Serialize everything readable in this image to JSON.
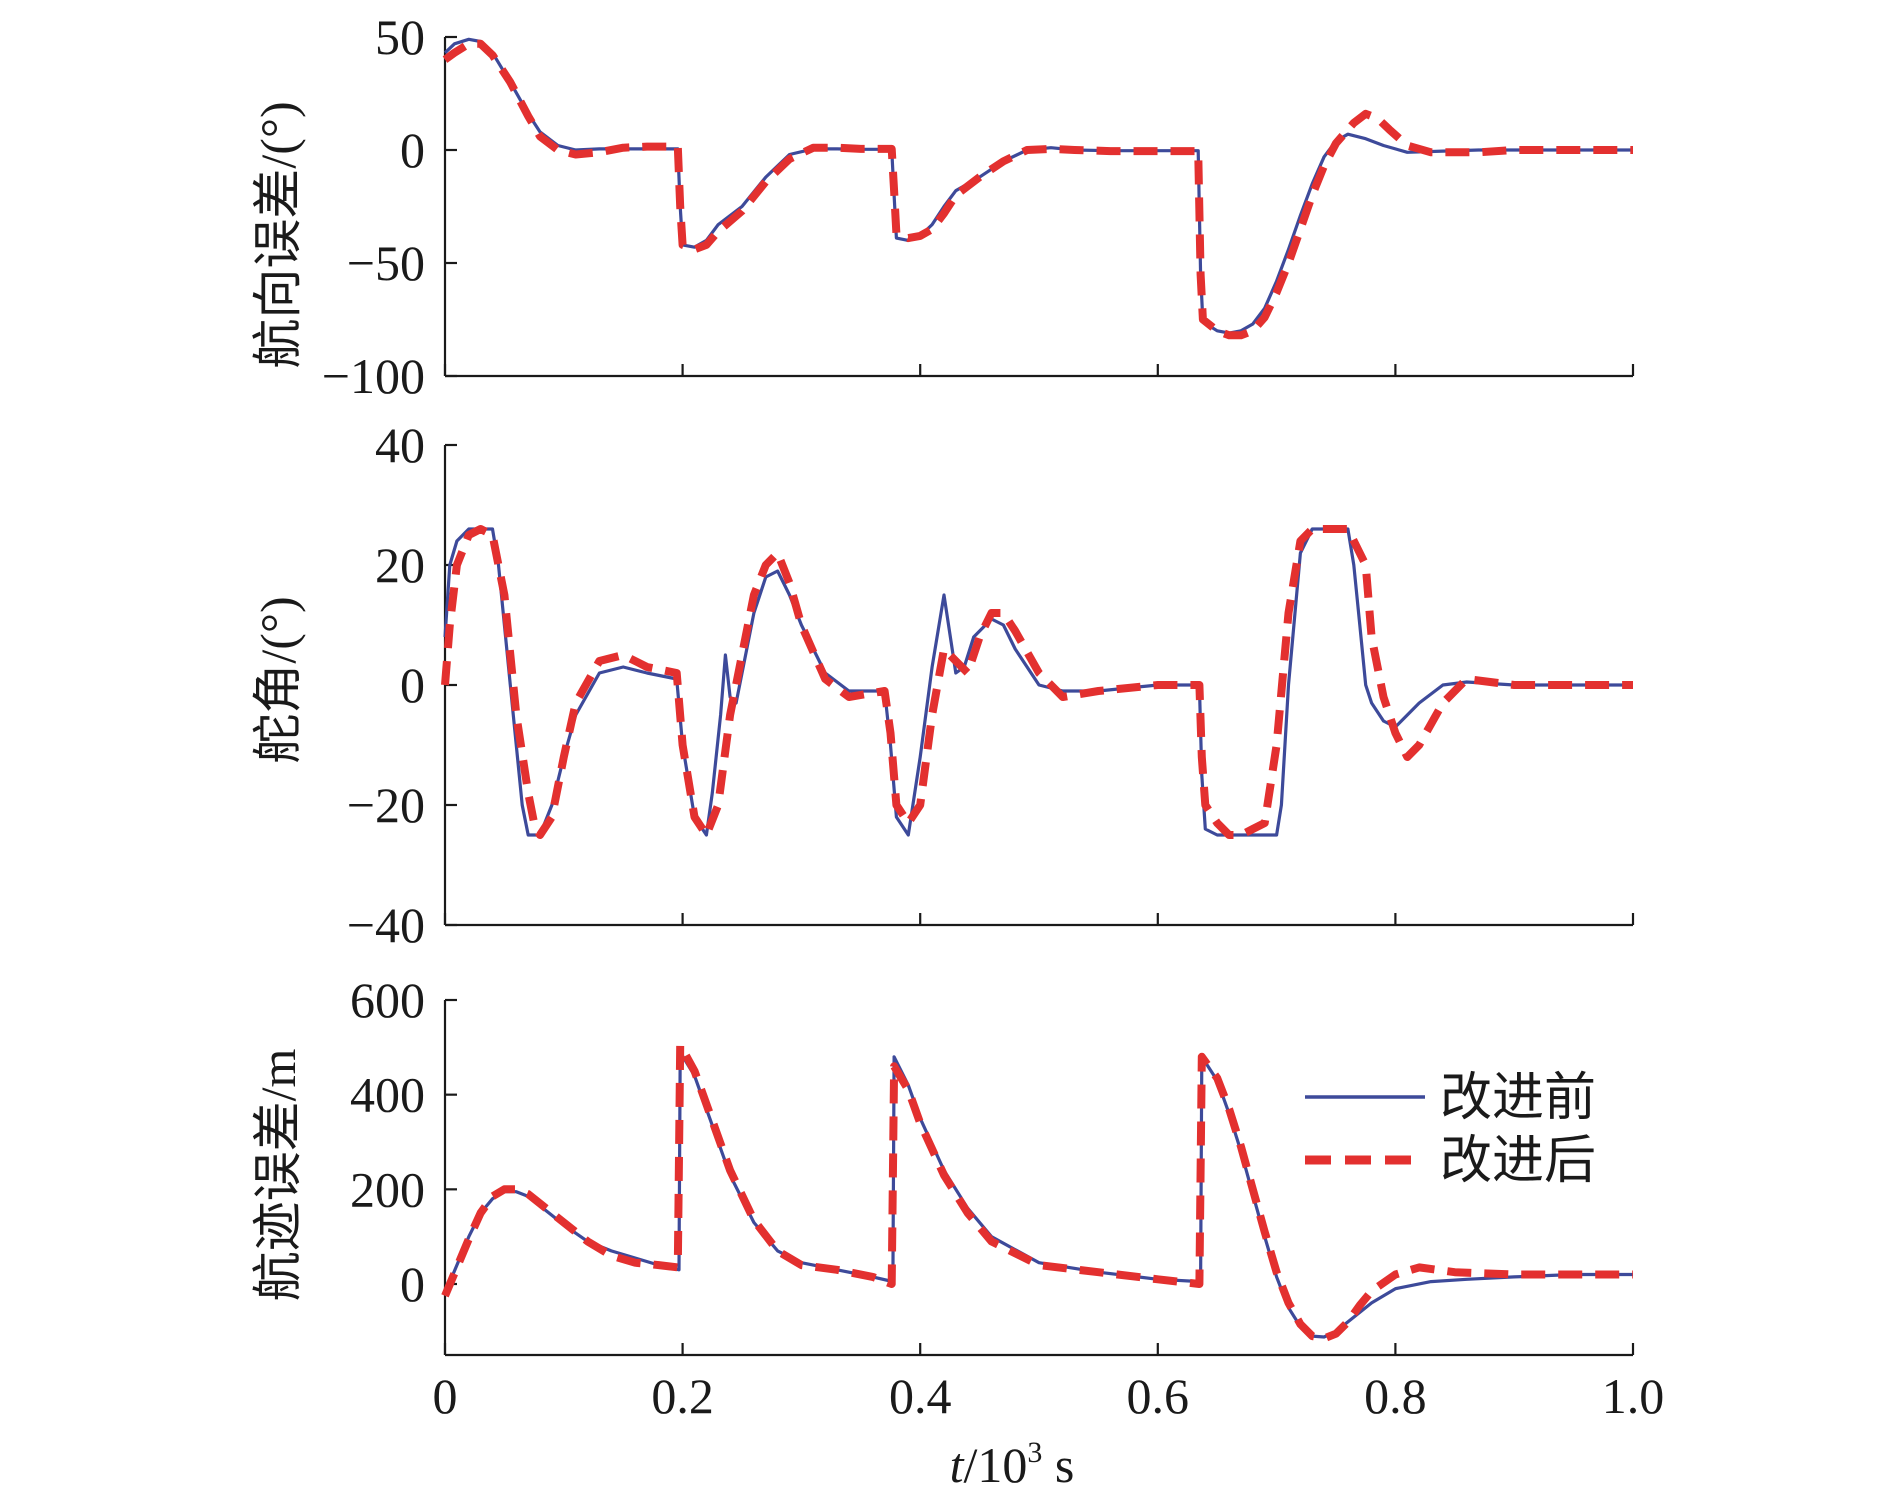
{
  "colors": {
    "before": "#3d4a9a",
    "after": "#e3302f",
    "axis": "#1a1a1a"
  },
  "legend": {
    "before_label": "改进前",
    "after_label": "改进后",
    "position": "right-center of bottom panel"
  },
  "x_axis": {
    "label_italic": "t",
    "label_rest": "/10",
    "label_sup": "3",
    "label_unit": " s",
    "xlim": [
      0,
      1.0
    ],
    "ticks": [
      0,
      0.2,
      0.4,
      0.6,
      0.8,
      1.0
    ],
    "tick_labels": [
      "0",
      "0.2",
      "0.4",
      "0.6",
      "0.8",
      "1.0"
    ]
  },
  "chart_data": [
    {
      "type": "line",
      "ylabel": "航向误差/(°)",
      "ylim": [
        -100,
        50
      ],
      "yticks": [
        50,
        0,
        -50,
        -100
      ],
      "ytick_labels": [
        "50",
        "0",
        "−50",
        "−100"
      ],
      "series": [
        {
          "name": "改进前",
          "x": [
            0,
            0.008,
            0.02,
            0.03,
            0.04,
            0.055,
            0.07,
            0.08,
            0.095,
            0.11,
            0.13,
            0.15,
            0.17,
            0.19,
            0.196,
            0.198,
            0.2,
            0.21,
            0.22,
            0.23,
            0.25,
            0.27,
            0.29,
            0.31,
            0.33,
            0.35,
            0.37,
            0.376,
            0.378,
            0.38,
            0.39,
            0.4,
            0.41,
            0.42,
            0.43,
            0.45,
            0.47,
            0.49,
            0.51,
            0.53,
            0.56,
            0.6,
            0.63,
            0.634,
            0.636,
            0.638,
            0.65,
            0.66,
            0.67,
            0.68,
            0.69,
            0.7,
            0.71,
            0.72,
            0.73,
            0.74,
            0.75,
            0.76,
            0.775,
            0.79,
            0.81,
            0.84,
            0.87,
            0.9,
            0.95,
            1.0
          ],
          "values": [
            43,
            47,
            49,
            48,
            43,
            30,
            16,
            8,
            2,
            0,
            0.5,
            0.5,
            0.5,
            0.5,
            0.5,
            -25,
            -42,
            -43,
            -40,
            -33,
            -25,
            -12,
            -2,
            0.5,
            0.5,
            0.3,
            0.3,
            0.3,
            -20,
            -39,
            -40,
            -38,
            -33,
            -25,
            -18,
            -12,
            -5,
            0,
            1,
            0,
            -0.3,
            -0.3,
            -0.3,
            -0.3,
            -55,
            -76,
            -80,
            -81,
            -80,
            -77,
            -70,
            -58,
            -44,
            -29,
            -15,
            -3,
            4,
            7,
            5,
            2,
            -1,
            -0.5,
            0,
            0,
            0,
            0
          ]
        },
        {
          "name": "改进后",
          "x": [
            0,
            0.008,
            0.02,
            0.03,
            0.04,
            0.055,
            0.07,
            0.08,
            0.095,
            0.11,
            0.13,
            0.15,
            0.17,
            0.19,
            0.196,
            0.198,
            0.2,
            0.21,
            0.22,
            0.23,
            0.25,
            0.27,
            0.29,
            0.31,
            0.33,
            0.35,
            0.37,
            0.376,
            0.378,
            0.38,
            0.39,
            0.4,
            0.41,
            0.42,
            0.43,
            0.45,
            0.47,
            0.49,
            0.51,
            0.53,
            0.56,
            0.6,
            0.63,
            0.634,
            0.636,
            0.638,
            0.65,
            0.66,
            0.67,
            0.68,
            0.69,
            0.7,
            0.71,
            0.72,
            0.73,
            0.74,
            0.75,
            0.765,
            0.775,
            0.785,
            0.795,
            0.81,
            0.83,
            0.87,
            0.9,
            0.95,
            1.0
          ],
          "values": [
            40,
            43,
            47,
            47,
            42,
            30,
            15,
            6,
            0,
            -2,
            -1,
            1,
            1.5,
            1.5,
            1.5,
            -25,
            -42,
            -44,
            -42,
            -36,
            -27,
            -14,
            -4,
            1,
            1,
            0.5,
            0.5,
            0.5,
            -18,
            -37,
            -39,
            -38,
            -35,
            -28,
            -20,
            -12,
            -5,
            0,
            0.5,
            0,
            -0.5,
            -0.5,
            -0.5,
            -0.5,
            -55,
            -75,
            -80,
            -82,
            -82,
            -80,
            -74,
            -63,
            -50,
            -35,
            -20,
            -7,
            3,
            12,
            16,
            14,
            9,
            2,
            -1,
            -1,
            0,
            0,
            0
          ]
        }
      ]
    },
    {
      "type": "line",
      "ylabel": "舵角/(°)",
      "ylim": [
        -40,
        40
      ],
      "yticks": [
        40,
        20,
        0,
        -20,
        -40
      ],
      "ytick_labels": [
        "40",
        "20",
        "0",
        "−20",
        "−40"
      ],
      "series": [
        {
          "name": "改进前",
          "x": [
            0,
            0.004,
            0.01,
            0.02,
            0.03,
            0.04,
            0.045,
            0.055,
            0.065,
            0.07,
            0.08,
            0.09,
            0.1,
            0.11,
            0.13,
            0.15,
            0.17,
            0.195,
            0.2,
            0.21,
            0.22,
            0.225,
            0.232,
            0.236,
            0.24,
            0.245,
            0.26,
            0.27,
            0.28,
            0.29,
            0.3,
            0.32,
            0.34,
            0.37,
            0.375,
            0.38,
            0.39,
            0.4,
            0.41,
            0.42,
            0.43,
            0.437,
            0.445,
            0.46,
            0.47,
            0.48,
            0.5,
            0.52,
            0.55,
            0.6,
            0.635,
            0.637,
            0.64,
            0.65,
            0.66,
            0.67,
            0.68,
            0.69,
            0.7,
            0.704,
            0.71,
            0.72,
            0.73,
            0.74,
            0.75,
            0.76,
            0.765,
            0.77,
            0.775,
            0.78,
            0.79,
            0.8,
            0.81,
            0.82,
            0.84,
            0.86,
            0.9,
            0.95,
            1.0
          ],
          "values": [
            8,
            20,
            24,
            26,
            26,
            26,
            20,
            0,
            -20,
            -25,
            -25,
            -20,
            -12,
            -5,
            2,
            3,
            2,
            1,
            -10,
            -22,
            -25,
            -18,
            -5,
            5,
            -2,
            -3,
            12,
            18,
            19,
            15,
            10,
            2,
            -1,
            -1,
            -10,
            -22,
            -25,
            -12,
            3,
            15,
            2,
            3,
            8,
            11,
            10,
            6,
            0,
            -1,
            -1,
            0,
            0,
            -15,
            -24,
            -25,
            -25,
            -25,
            -25,
            -25,
            -25,
            -20,
            0,
            22,
            26,
            26,
            26,
            26,
            20,
            10,
            0,
            -3,
            -6,
            -7,
            -5,
            -3,
            0,
            0.5,
            0,
            0,
            0
          ]
        },
        {
          "name": "改进后",
          "x": [
            0,
            0.004,
            0.01,
            0.02,
            0.03,
            0.04,
            0.05,
            0.06,
            0.07,
            0.075,
            0.08,
            0.09,
            0.1,
            0.11,
            0.13,
            0.15,
            0.17,
            0.195,
            0.2,
            0.21,
            0.22,
            0.23,
            0.24,
            0.25,
            0.26,
            0.27,
            0.28,
            0.29,
            0.3,
            0.32,
            0.34,
            0.37,
            0.375,
            0.38,
            0.39,
            0.4,
            0.41,
            0.42,
            0.43,
            0.44,
            0.45,
            0.46,
            0.47,
            0.48,
            0.5,
            0.52,
            0.55,
            0.6,
            0.635,
            0.637,
            0.64,
            0.65,
            0.66,
            0.67,
            0.68,
            0.69,
            0.7,
            0.71,
            0.72,
            0.73,
            0.74,
            0.75,
            0.76,
            0.775,
            0.78,
            0.79,
            0.8,
            0.81,
            0.82,
            0.84,
            0.86,
            0.9,
            0.95,
            1.0
          ],
          "values": [
            0,
            10,
            20,
            25,
            26,
            25,
            15,
            -5,
            -18,
            -23,
            -25,
            -22,
            -12,
            -3,
            4,
            5,
            3,
            2,
            -10,
            -22,
            -25,
            -20,
            -5,
            5,
            15,
            20,
            22,
            17,
            10,
            1,
            -2,
            -1,
            -8,
            -20,
            -23,
            -20,
            -5,
            6,
            4,
            2,
            8,
            12,
            12,
            9,
            2,
            -2,
            -1,
            0,
            0,
            -12,
            -20,
            -23,
            -25,
            -25,
            -24,
            -23,
            -10,
            12,
            24,
            26,
            26,
            26,
            26,
            20,
            8,
            -2,
            -8,
            -12,
            -10,
            -3,
            1,
            0,
            0,
            0
          ]
        }
      ]
    },
    {
      "type": "line",
      "ylabel": "航迹误差/m",
      "ylim": [
        -150,
        600
      ],
      "yticks": [
        600,
        400,
        200,
        0
      ],
      "ytick_labels": [
        "600",
        "400",
        "200",
        "0"
      ],
      "series": [
        {
          "name": "改进前",
          "x": [
            0,
            0.01,
            0.02,
            0.03,
            0.04,
            0.05,
            0.06,
            0.07,
            0.08,
            0.1,
            0.12,
            0.14,
            0.16,
            0.18,
            0.197,
            0.198,
            0.21,
            0.22,
            0.24,
            0.26,
            0.28,
            0.3,
            0.33,
            0.36,
            0.377,
            0.378,
            0.39,
            0.4,
            0.42,
            0.44,
            0.46,
            0.5,
            0.55,
            0.6,
            0.636,
            0.637,
            0.65,
            0.66,
            0.67,
            0.68,
            0.69,
            0.7,
            0.71,
            0.72,
            0.73,
            0.74,
            0.75,
            0.76,
            0.78,
            0.8,
            0.83,
            0.86,
            0.9,
            0.95,
            1.0
          ],
          "values": [
            -20,
            40,
            100,
            150,
            180,
            195,
            195,
            185,
            165,
            125,
            90,
            70,
            55,
            40,
            30,
            490,
            440,
            370,
            230,
            130,
            70,
            45,
            30,
            15,
            5,
            480,
            420,
            350,
            240,
            160,
            100,
            45,
            25,
            10,
            5,
            480,
            430,
            360,
            280,
            190,
            100,
            15,
            -50,
            -90,
            -110,
            -112,
            -100,
            -80,
            -40,
            -10,
            5,
            10,
            15,
            20,
            20
          ]
        },
        {
          "name": "改进后",
          "x": [
            0,
            0.01,
            0.02,
            0.03,
            0.04,
            0.05,
            0.06,
            0.07,
            0.08,
            0.1,
            0.12,
            0.14,
            0.16,
            0.18,
            0.196,
            0.198,
            0.21,
            0.22,
            0.24,
            0.26,
            0.28,
            0.3,
            0.33,
            0.36,
            0.376,
            0.378,
            0.39,
            0.4,
            0.42,
            0.44,
            0.46,
            0.5,
            0.55,
            0.6,
            0.635,
            0.637,
            0.65,
            0.66,
            0.67,
            0.68,
            0.69,
            0.7,
            0.71,
            0.72,
            0.73,
            0.74,
            0.75,
            0.76,
            0.77,
            0.78,
            0.8,
            0.82,
            0.85,
            0.9,
            0.95,
            1.0
          ],
          "values": [
            -25,
            35,
            95,
            150,
            185,
            200,
            200,
            190,
            170,
            130,
            90,
            60,
            45,
            40,
            35,
            505,
            450,
            380,
            240,
            135,
            70,
            40,
            30,
            15,
            0,
            460,
            410,
            340,
            230,
            150,
            90,
            40,
            25,
            10,
            0,
            480,
            435,
            370,
            290,
            200,
            110,
            25,
            -40,
            -85,
            -110,
            -115,
            -105,
            -80,
            -45,
            -15,
            20,
            35,
            25,
            20,
            20,
            20
          ]
        }
      ]
    }
  ]
}
